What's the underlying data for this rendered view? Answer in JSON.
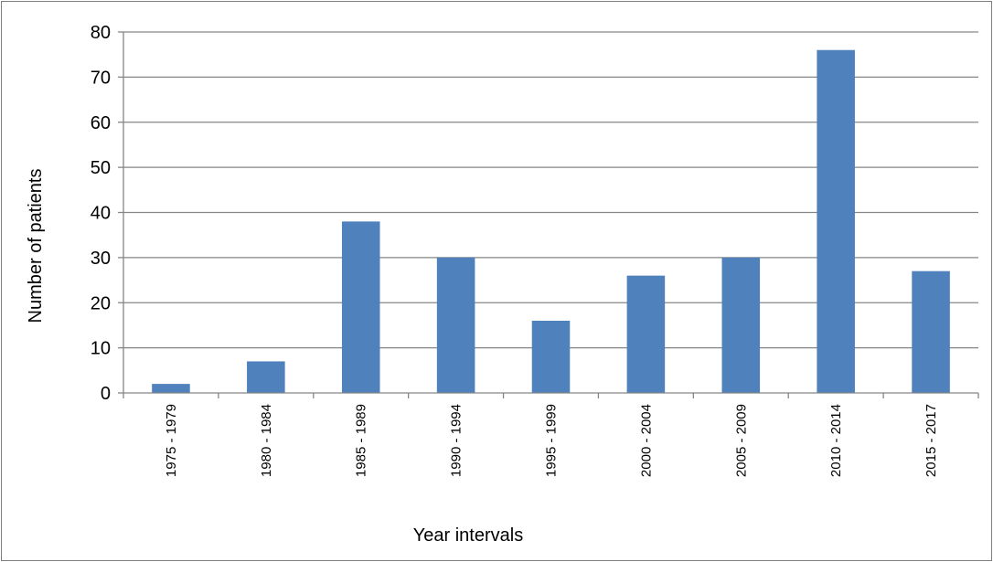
{
  "chart_data": {
    "type": "bar",
    "categories": [
      "1975 - 1979",
      "1980 - 1984",
      "1985 - 1989",
      "1990 - 1994",
      "1995 - 1999",
      "2000 - 2004",
      "2005 - 2009",
      "2010 - 2014",
      "2015 - 2017"
    ],
    "values": [
      2,
      7,
      38,
      30,
      16,
      26,
      30,
      76,
      27
    ],
    "xlabel": "Year intervals",
    "ylabel": "Number of patients",
    "ylim": [
      0,
      80
    ],
    "yticks": [
      0,
      10,
      20,
      30,
      40,
      50,
      60,
      70,
      80
    ],
    "grid": true,
    "legend": "none",
    "colors": {
      "bar": "#4f81bd",
      "grid": "#868686",
      "axis": "#868686"
    }
  }
}
